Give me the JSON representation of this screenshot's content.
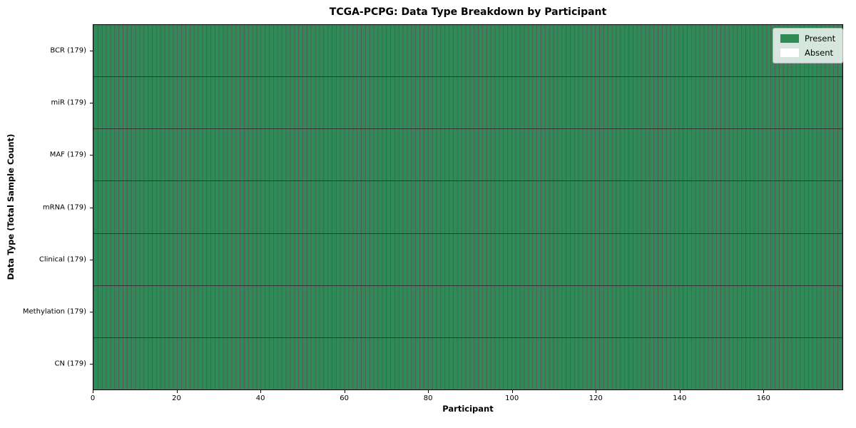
{
  "chart_data": {
    "type": "heatmap",
    "title": "TCGA-PCPG: Data Type Breakdown by Participant",
    "xlabel": "Participant",
    "ylabel": "Data Type (Total Sample Count)",
    "rows": [
      {
        "label": "BCR (179)",
        "total": 179,
        "present": 179,
        "absent": 0
      },
      {
        "label": "miR (179)",
        "total": 179,
        "present": 179,
        "absent": 0
      },
      {
        "label": "MAF (179)",
        "total": 179,
        "present": 179,
        "absent": 0
      },
      {
        "label": "mRNA (179)",
        "total": 179,
        "present": 179,
        "absent": 0
      },
      {
        "label": "Clinical (179)",
        "total": 179,
        "present": 179,
        "absent": 0
      },
      {
        "label": "Methylation (179)",
        "total": 179,
        "present": 179,
        "absent": 0
      },
      {
        "label": "CN (179)",
        "total": 179,
        "present": 179,
        "absent": 0
      }
    ],
    "n_participants": 179,
    "x_range": [
      0,
      179
    ],
    "x_ticks": [
      0,
      20,
      40,
      60,
      80,
      100,
      120,
      140,
      160
    ],
    "legend": [
      {
        "label": "Present",
        "color": "#2e8b57"
      },
      {
        "label": "Absent",
        "color": "#ffffff"
      }
    ],
    "legend_position": "upper right",
    "grid": false,
    "colors": {
      "present": "#2e8b57",
      "absent": "#ffffff",
      "cell_edge": "rgba(0,0,0,0.65)",
      "row_divider": "rgba(0,0,0,0.8)",
      "axis": "#000000"
    }
  }
}
